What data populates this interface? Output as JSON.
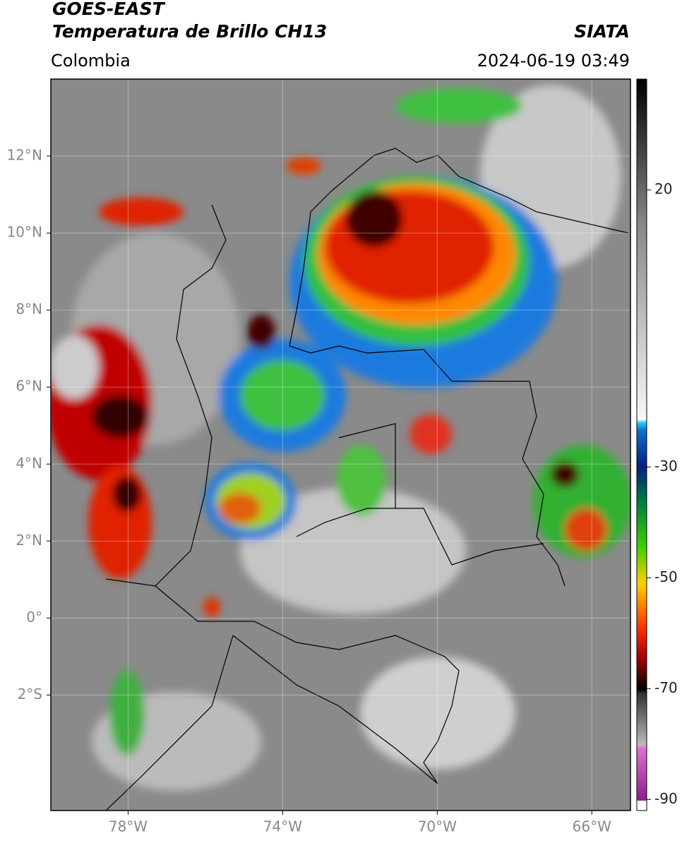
{
  "header": {
    "title": "GOES-EAST",
    "subtitle": "Temperatura de Brillo CH13",
    "region": "Colombia",
    "source": "SIATA",
    "timestamp": "2024-06-19 03:49"
  },
  "map": {
    "xlim": [
      -80,
      -65
    ],
    "ylim": [
      -5,
      14
    ],
    "xticks": [
      {
        "value": -78,
        "label": "78°W"
      },
      {
        "value": -74,
        "label": "74°W"
      },
      {
        "value": -70,
        "label": "70°W"
      },
      {
        "value": -66,
        "label": "66°W"
      }
    ],
    "yticks": [
      {
        "value": 12,
        "label": "12°N"
      },
      {
        "value": 10,
        "label": "10°N"
      },
      {
        "value": 8,
        "label": "8°N"
      },
      {
        "value": 6,
        "label": "6°N"
      },
      {
        "value": 4,
        "label": "4°N"
      },
      {
        "value": 2,
        "label": "2°N"
      },
      {
        "value": 0,
        "label": "0°"
      },
      {
        "value": -2,
        "label": "2°S"
      }
    ],
    "grid": true
  },
  "colorbar": {
    "lim": [
      -92,
      40
    ],
    "ticks": [
      20,
      -30,
      -50,
      -70,
      -90
    ]
  }
}
